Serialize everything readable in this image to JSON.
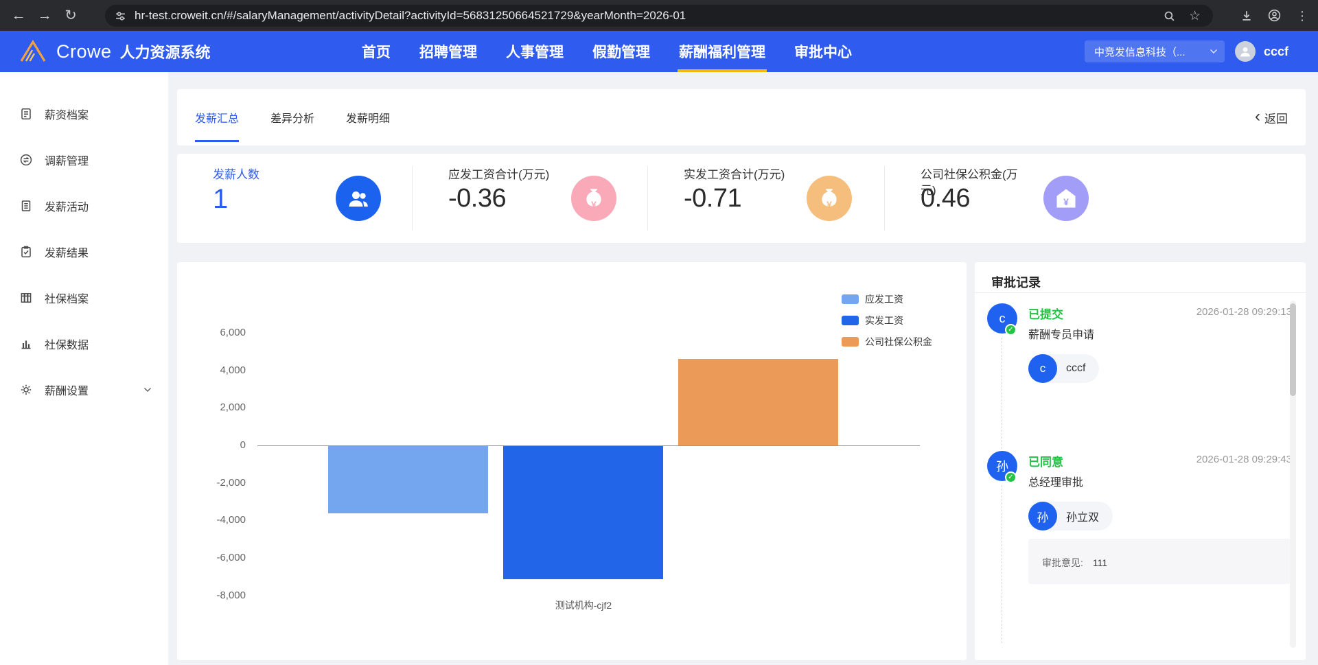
{
  "colors": {
    "header_blue": "#2f5bef",
    "accent_blue": "#2e5bef",
    "active_underline_yellow": "#f4b70c",
    "status_green": "#22c346",
    "timeline_avatar_blue": "#2062f0",
    "bar_light_blue": "#73A6EE",
    "bar_blue": "#2365E8",
    "bar_orange": "#EC9A58"
  },
  "browser": {
    "url": "hr-test.croweit.cn/#/salaryManagement/activityDetail?activityId=56831250664521729&yearMonth=2026-01"
  },
  "header": {
    "brand": "Crowe",
    "product": "人力资源系统",
    "nav": [
      {
        "label": "首页"
      },
      {
        "label": "招聘管理"
      },
      {
        "label": "人事管理"
      },
      {
        "label": "假勤管理"
      },
      {
        "label": "薪酬福利管理",
        "active": true
      },
      {
        "label": "审批中心"
      }
    ],
    "company": "中竞发信息科技（...",
    "username": "cccf"
  },
  "sidebar": {
    "items": [
      {
        "label": "薪资档案",
        "icon": "document-icon"
      },
      {
        "label": "调薪管理",
        "icon": "swap-arrows-icon"
      },
      {
        "label": "发薪活动",
        "icon": "document-lines-icon"
      },
      {
        "label": "发薪结果",
        "icon": "clipboard-check-icon"
      },
      {
        "label": "社保档案",
        "icon": "archive-icon"
      },
      {
        "label": "社保数据",
        "icon": "bar-chart-icon"
      },
      {
        "label": "薪酬设置",
        "icon": "gear-icon",
        "expandable": true
      }
    ]
  },
  "tabs": {
    "items": [
      {
        "label": "发薪汇总",
        "active": true
      },
      {
        "label": "差异分析"
      },
      {
        "label": "发薪明细"
      }
    ],
    "back_label": "返回"
  },
  "stats": [
    {
      "label": "发薪人数",
      "value": "1",
      "icon": "people-icon",
      "icon_bg": "#1b63ee"
    },
    {
      "label": "应发工资合计(万元)",
      "value": "-0.36",
      "icon": "money-bag-icon",
      "icon_bg": "#f9a9b8"
    },
    {
      "label": "实发工资合计(万元)",
      "value": "-0.71",
      "icon": "money-bag-icon",
      "icon_bg": "#f6be7d"
    },
    {
      "label": "公司社保公积金(万元)",
      "value": "0.46",
      "icon": "house-fund-icon",
      "icon_bg": "#a29df7"
    }
  ],
  "chart_data": {
    "type": "bar",
    "categories": [
      "测试机构-cjf2"
    ],
    "series": [
      {
        "name": "应发工资",
        "values": [
          -3600
        ],
        "color": "#73A6EE"
      },
      {
        "name": "实发工资",
        "values": [
          -7100
        ],
        "color": "#2365E8"
      },
      {
        "name": "公司社保公积金",
        "values": [
          4600
        ],
        "color": "#EC9A58"
      }
    ],
    "ylim": [
      -8000,
      6000
    ],
    "yticks": [
      6000,
      4000,
      2000,
      0,
      -2000,
      -4000,
      -6000,
      -8000
    ],
    "xlabel": "",
    "ylabel": "",
    "legend_position": "top-right",
    "grid": false
  },
  "approval": {
    "title": "审批记录",
    "records": [
      {
        "avatar_text": "c",
        "status": "已提交",
        "time": "2026-01-28 09:29:13",
        "step": "薪酬专员申请",
        "person": {
          "avatar_text": "c",
          "name": "cccf"
        }
      },
      {
        "avatar_text": "孙",
        "status": "已同意",
        "time": "2026-01-28 09:29:43",
        "step": "总经理审批",
        "person": {
          "avatar_text": "孙",
          "name": "孙立双"
        },
        "comment_label": "审批意见:",
        "comment": "111"
      }
    ]
  }
}
